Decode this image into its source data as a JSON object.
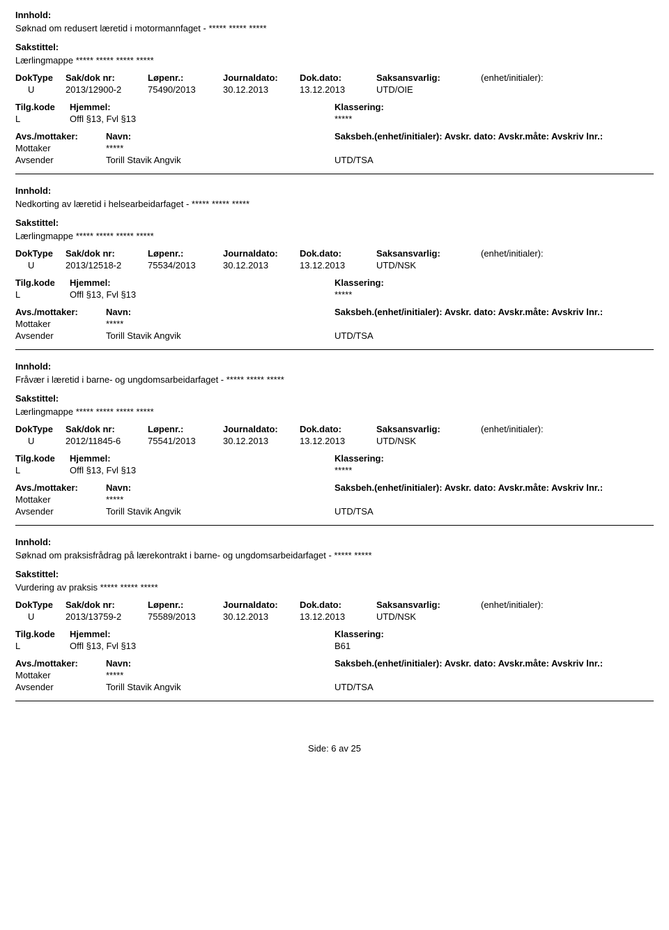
{
  "labels": {
    "innhold": "Innhold:",
    "sakstittel": "Sakstittel:",
    "doktype": "DokType",
    "sakdok": "Sak/dok nr:",
    "lopenr": "Løpenr.:",
    "journaldato": "Journaldato:",
    "dokdato": "Dok.dato:",
    "saksansvarlig": "Saksansvarlig:",
    "enhet": "(enhet/initialer):",
    "tilgkode": "Tilg.kode",
    "hjemmel": "Hjemmel:",
    "klassering": "Klassering:",
    "avsmottaker": "Avs./mottaker:",
    "navn": "Navn:",
    "saksbeh": "Saksbeh.(enhet/initialer): Avskr. dato: Avskr.måte: Avskriv lnr.:",
    "mottaker": "Mottaker",
    "avsender": "Avsender"
  },
  "records": [
    {
      "innhold": "Søknad om redusert læretid i motormannfaget - ***** ***** *****",
      "sakstittel": "Lærlingmappe ***** ***** ***** *****",
      "doktype": "U",
      "sakdok": "2013/12900-2",
      "lopenr": "75490/2013",
      "journaldato": "30.12.2013",
      "dokdato": "13.12.2013",
      "saksansvarlig": "UTD/OIE",
      "tilgkode": "L",
      "hjemmel": "Offl §13, Fvl §13",
      "klassering": "*****",
      "mottaker": "*****",
      "avsender": "Torill Stavik Angvik",
      "acode": "UTD/TSA"
    },
    {
      "innhold": "Nedkorting av læretid i helsearbeidarfaget - ***** ***** *****",
      "sakstittel": "Lærlingmappe ***** ***** ***** *****",
      "doktype": "U",
      "sakdok": "2013/12518-2",
      "lopenr": "75534/2013",
      "journaldato": "30.12.2013",
      "dokdato": "13.12.2013",
      "saksansvarlig": "UTD/NSK",
      "tilgkode": "L",
      "hjemmel": "Offl §13, Fvl §13",
      "klassering": "*****",
      "mottaker": "*****",
      "avsender": "Torill Stavik Angvik",
      "acode": "UTD/TSA"
    },
    {
      "innhold": "Fråvær i læretid i barne- og ungdomsarbeidarfaget - ***** ***** *****",
      "sakstittel": "Lærlingmappe ***** ***** ***** *****",
      "doktype": "U",
      "sakdok": "2012/11845-6",
      "lopenr": "75541/2013",
      "journaldato": "30.12.2013",
      "dokdato": "13.12.2013",
      "saksansvarlig": "UTD/NSK",
      "tilgkode": "L",
      "hjemmel": "Offl §13, Fvl §13",
      "klassering": "*****",
      "mottaker": "*****",
      "avsender": "Torill Stavik Angvik",
      "acode": "UTD/TSA"
    },
    {
      "innhold": "Søknad om praksisfrådrag på lærekontrakt i barne- og ungdomsarbeidarfaget - ***** *****",
      "sakstittel": "Vurdering av praksis ***** ***** *****",
      "doktype": "U",
      "sakdok": "2013/13759-2",
      "lopenr": "75589/2013",
      "journaldato": "30.12.2013",
      "dokdato": "13.12.2013",
      "saksansvarlig": "UTD/NSK",
      "tilgkode": "L",
      "hjemmel": "Offl §13, Fvl §13",
      "klassering": "B61",
      "mottaker": "*****",
      "avsender": "Torill Stavik Angvik",
      "acode": "UTD/TSA"
    }
  ],
  "footer": "Side: 6 av 25"
}
